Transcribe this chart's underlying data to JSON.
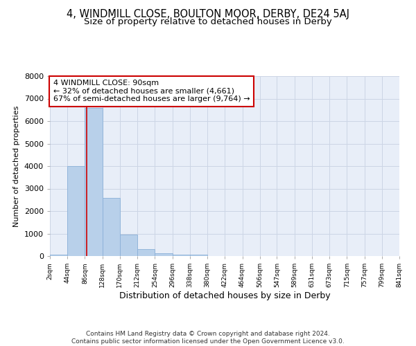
{
  "title1": "4, WINDMILL CLOSE, BOULTON MOOR, DERBY, DE24 5AJ",
  "title2": "Size of property relative to detached houses in Derby",
  "xlabel": "Distribution of detached houses by size in Derby",
  "ylabel": "Number of detached properties",
  "footer": "Contains HM Land Registry data © Crown copyright and database right 2024.\nContains public sector information licensed under the Open Government Licence v3.0.",
  "bin_edges": [
    2,
    44,
    86,
    128,
    170,
    212,
    254,
    296,
    338,
    380,
    422,
    464,
    506,
    547,
    589,
    631,
    673,
    715,
    757,
    799,
    841
  ],
  "bar_heights": [
    75,
    4000,
    6600,
    2600,
    950,
    310,
    115,
    75,
    75,
    0,
    0,
    0,
    0,
    0,
    0,
    0,
    0,
    0,
    0,
    0
  ],
  "bar_color": "#b8d0ea",
  "bar_edge_color": "#8ab0d8",
  "vline_x": 90,
  "vline_color": "#cc0000",
  "annotation_text": "4 WINDMILL CLOSE: 90sqm\n← 32% of detached houses are smaller (4,661)\n67% of semi-detached houses are larger (9,764) →",
  "annotation_fontsize": 8,
  "annotation_box_color": "white",
  "annotation_border_color": "#cc0000",
  "ylim": [
    0,
    8000
  ],
  "yticks": [
    0,
    1000,
    2000,
    3000,
    4000,
    5000,
    6000,
    7000,
    8000
  ],
  "grid_color": "#ccd5e5",
  "bg_color": "#e8eef8",
  "title1_fontsize": 10.5,
  "title2_fontsize": 9.5,
  "xlabel_fontsize": 9,
  "ylabel_fontsize": 8,
  "footer_fontsize": 6.5
}
